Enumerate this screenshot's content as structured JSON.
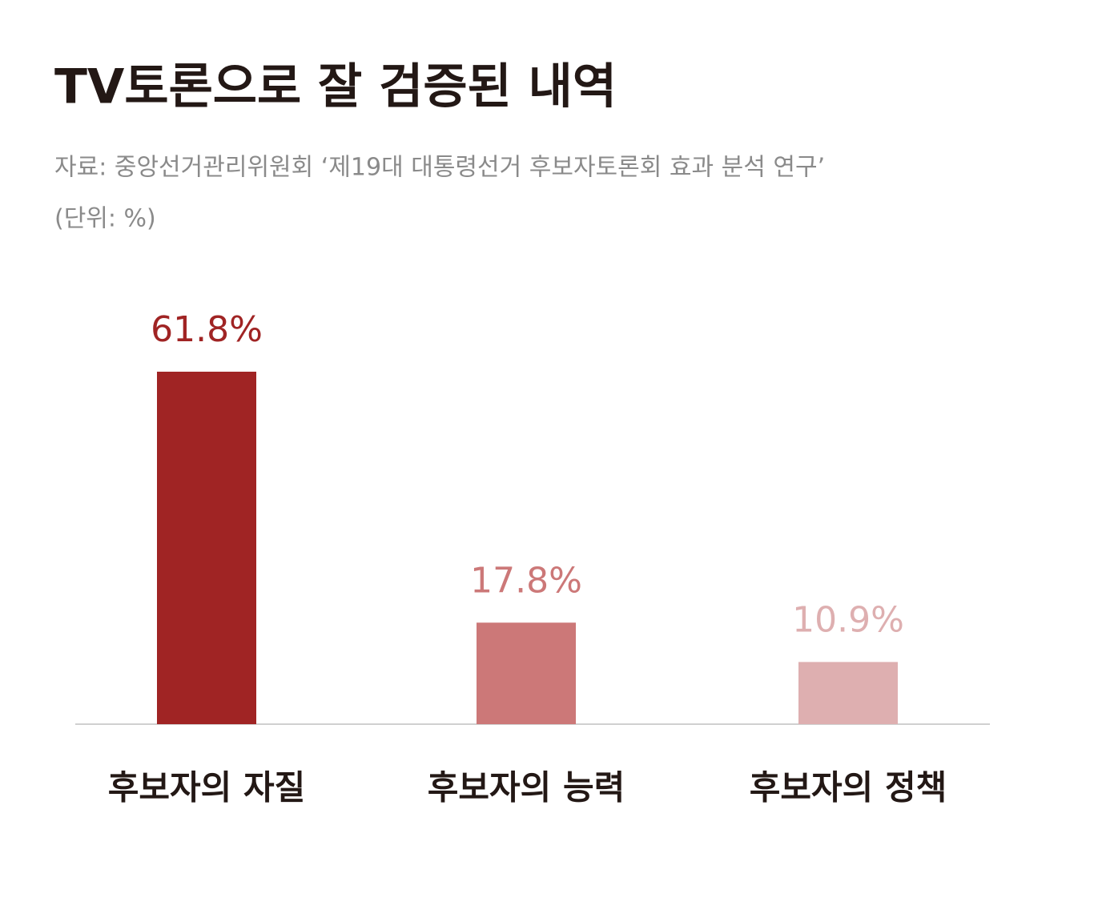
{
  "chart_data": {
    "type": "bar",
    "title": "TV토론으로 잘 검증된 내역",
    "subtitle": "자료: 중앙선거관리위원회 ‘제19대 대통령선거 후보자토론회 효과 분석 연구’",
    "unit": "(단위: %)",
    "categories": [
      "후보자의 자질",
      "후보자의 능력",
      "후보자의 정책"
    ],
    "values": [
      61.8,
      17.8,
      10.9
    ],
    "value_labels": [
      "61.8%",
      "17.8%",
      "10.9%"
    ],
    "colors": [
      "#a02424",
      "#cc7878",
      "#deafb0"
    ]
  }
}
